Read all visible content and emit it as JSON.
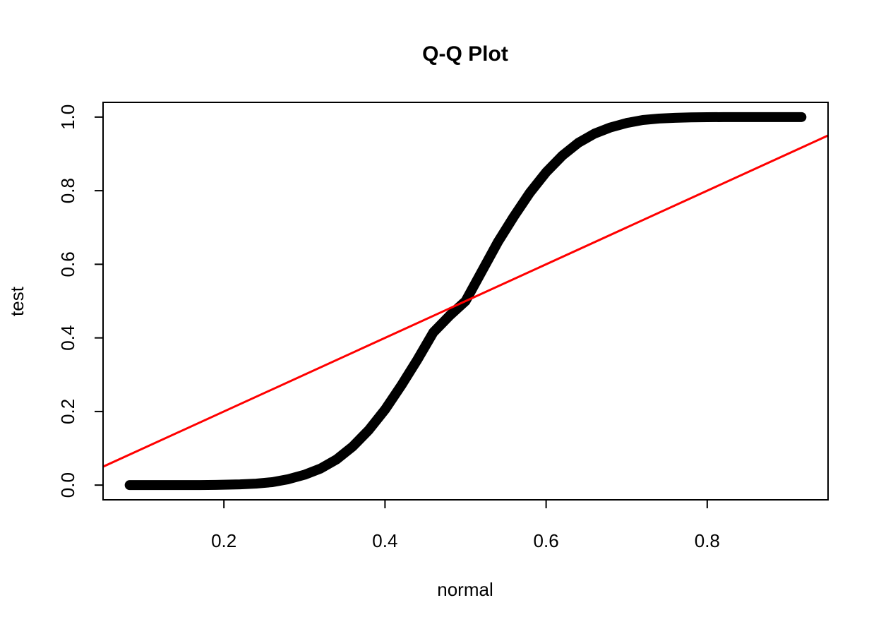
{
  "chart_data": {
    "type": "scatter",
    "title": "Q-Q Plot",
    "xlabel": "normal",
    "ylabel": "test",
    "xlim": [
      0.05,
      0.95
    ],
    "ylim": [
      -0.04,
      1.04
    ],
    "x_ticks": [
      0.2,
      0.4,
      0.6,
      0.8
    ],
    "x_tick_labels": [
      "0.2",
      "0.4",
      "0.6",
      "0.8"
    ],
    "y_ticks": [
      0.0,
      0.2,
      0.4,
      0.6,
      0.8,
      1.0
    ],
    "y_tick_labels": [
      "0.0",
      "0.2",
      "0.4",
      "0.6",
      "0.8",
      "1.0"
    ],
    "grid": false,
    "point_style": "open-circle",
    "point_color": "#000000",
    "points": [
      [
        0.083,
        0.0
      ],
      [
        0.099,
        0.0
      ],
      [
        0.106,
        0.0
      ],
      [
        0.113,
        0.0
      ],
      [
        0.123,
        0.0
      ],
      [
        0.132,
        0.0
      ],
      [
        0.138,
        0.0
      ],
      [
        0.143,
        0.0
      ],
      [
        0.15,
        0.0
      ],
      [
        0.158,
        0.0
      ],
      [
        0.17,
        0.0001
      ],
      [
        0.19,
        0.0005
      ],
      [
        0.2,
        0.001
      ],
      [
        0.22,
        0.002
      ],
      [
        0.24,
        0.004
      ],
      [
        0.26,
        0.008
      ],
      [
        0.28,
        0.016
      ],
      [
        0.3,
        0.028
      ],
      [
        0.32,
        0.045
      ],
      [
        0.34,
        0.07
      ],
      [
        0.36,
        0.105
      ],
      [
        0.38,
        0.15
      ],
      [
        0.4,
        0.205
      ],
      [
        0.42,
        0.27
      ],
      [
        0.44,
        0.34
      ],
      [
        0.46,
        0.415
      ],
      [
        0.48,
        0.46
      ],
      [
        0.5,
        0.5
      ],
      [
        0.52,
        0.58
      ],
      [
        0.54,
        0.66
      ],
      [
        0.56,
        0.73
      ],
      [
        0.58,
        0.795
      ],
      [
        0.6,
        0.85
      ],
      [
        0.62,
        0.895
      ],
      [
        0.64,
        0.93
      ],
      [
        0.66,
        0.955
      ],
      [
        0.68,
        0.972
      ],
      [
        0.7,
        0.984
      ],
      [
        0.72,
        0.992
      ],
      [
        0.74,
        0.996
      ],
      [
        0.76,
        0.998
      ],
      [
        0.78,
        0.9993
      ],
      [
        0.8,
        0.9997
      ],
      [
        0.82,
        0.9999
      ],
      [
        0.84,
        1.0
      ],
      [
        0.85,
        1.0
      ],
      [
        0.857,
        1.0
      ],
      [
        0.862,
        1.0
      ],
      [
        0.868,
        1.0
      ],
      [
        0.874,
        1.0
      ],
      [
        0.886,
        1.0
      ],
      [
        0.893,
        1.0
      ],
      [
        0.901,
        1.0
      ],
      [
        0.913,
        1.0
      ],
      [
        0.917,
        1.0
      ]
    ],
    "reference_line": {
      "color": "#ff0000",
      "slope": 1.0,
      "intercept": 0.0
    }
  }
}
